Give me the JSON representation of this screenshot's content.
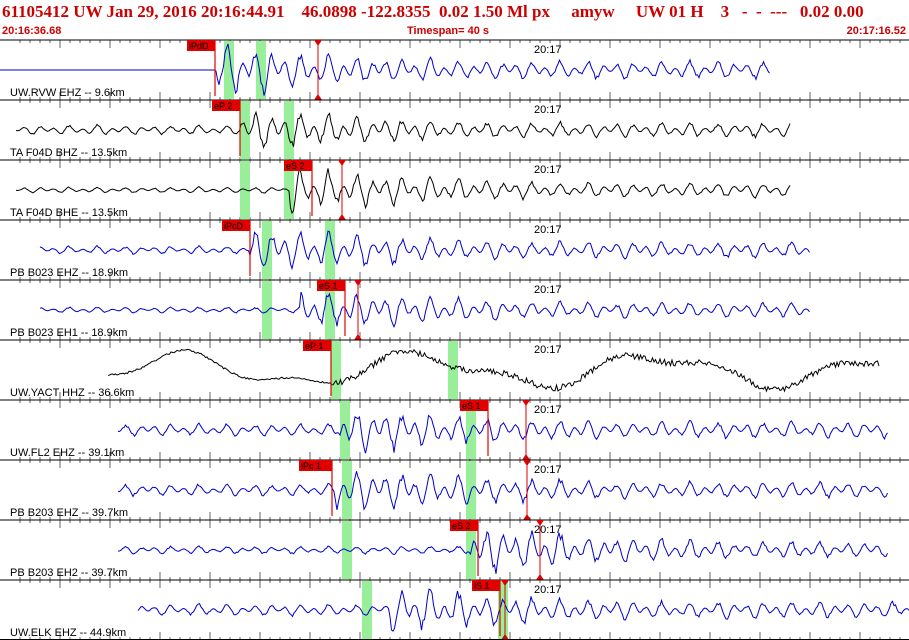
{
  "header": {
    "title": "61105412 UW Jan 29, 2016 20:16:44.91    46.0898 -122.8355  0.02 1.50 Ml px     amyw     UW 01 H    3   -  -  ---   0.02 0.00",
    "start_time": "20:16:36.68",
    "timespan": "Timespan=  40 s",
    "end_time": "20:17:16.52"
  },
  "colors": {
    "header_text": "#cc0000",
    "trace_blue": "#0000cc",
    "trace_black": "#000000",
    "pick": "#e00000",
    "window": "#99ee99"
  },
  "traces": [
    {
      "label": "UW.RVW EHZ --  9.6km",
      "time": "20:17",
      "color": "blue",
      "picks": [
        {
          "label": "iPdD",
          "marker": "triangle"
        }
      ]
    },
    {
      "label": "TA F04D BHZ -- 13.5km",
      "time": "20:17",
      "color": "black",
      "picks": [
        {
          "label": "eP 2",
          "marker": "none"
        }
      ]
    },
    {
      "label": "TA F04D BHE -- 13.5km",
      "time": "20:17",
      "color": "black",
      "picks": [
        {
          "label": "eS 2",
          "marker": "triangle"
        }
      ]
    },
    {
      "label": "PB B023 EHZ -- 18.9km",
      "time": "20:17",
      "color": "blue",
      "picks": [
        {
          "label": "iPcD",
          "marker": "none"
        }
      ]
    },
    {
      "label": "PB B023 EH1 -- 18.9km",
      "time": "20:17",
      "color": "blue",
      "picks": [
        {
          "label": "eS 1",
          "marker": "triangle"
        }
      ]
    },
    {
      "label": "UW.YACT HHZ -- 36.6km",
      "time": "20:17",
      "color": "black",
      "picks": [
        {
          "label": "eP 1",
          "marker": "none"
        }
      ]
    },
    {
      "label": "UW.FL2 EHZ -- 39.1km",
      "time": "20:17",
      "color": "blue",
      "picks": [
        {
          "label": "eS 1",
          "marker": "triangle"
        }
      ]
    },
    {
      "label": "PB B203 EHZ -- 39.7km",
      "time": "20:17",
      "color": "blue",
      "picks": [
        {
          "label": "iPc 1",
          "marker": "triangle"
        }
      ]
    },
    {
      "label": "PB B203 EH2 -- 39.7km",
      "time": "20:17",
      "color": "blue",
      "picks": [
        {
          "label": "eS 2",
          "marker": "triangle"
        }
      ]
    },
    {
      "label": "UW.ELK EHZ -- 44.9km",
      "time": "20:17",
      "color": "blue",
      "picks": [
        {
          "label": "iS 1",
          "marker": "triangle"
        }
      ]
    }
  ]
}
